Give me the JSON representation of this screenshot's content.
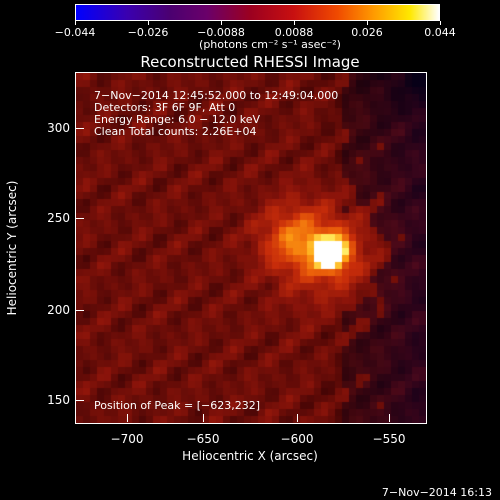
{
  "colorbar": {
    "ticks": [
      "−0.044",
      "−0.026",
      "−0.0088",
      "0.0088",
      "0.026",
      "0.044"
    ],
    "units": "(photons cm⁻² s⁻¹ asec⁻²)"
  },
  "title": "Reconstructed RHESSI Image",
  "annotations": {
    "time_range": "7−Nov−2014 12:45:52.000 to 12:49:04.000",
    "detectors": "Detectors: 3F 6F 9F, Att 0",
    "energy": "Energy Range: 6.0 − 12.0 keV",
    "method": "Clean     Total counts: 2.26E+04",
    "peak": "Position of Peak = [−623,232]"
  },
  "axes": {
    "xlabel": "Heliocentric X (arcsec)",
    "ylabel": "Heliocentric Y (arcsec)",
    "xticks": [
      "−700",
      "−650",
      "−600",
      "−550"
    ],
    "yticks": [
      "300",
      "250",
      "200",
      "150"
    ]
  },
  "footer": "7−Nov−2014 16:13",
  "image": {
    "x_range": [
      -725,
      -533
    ],
    "y_range": [
      135,
      327
    ],
    "peak_x": -623,
    "peak_y": 232
  }
}
